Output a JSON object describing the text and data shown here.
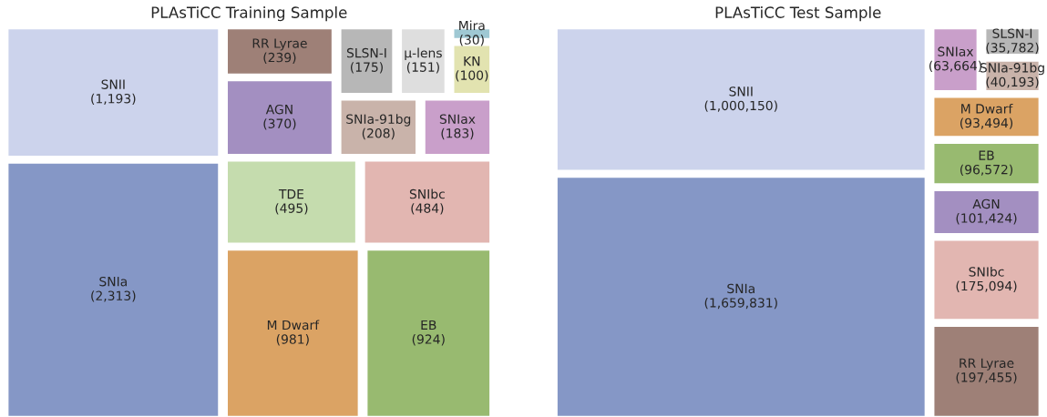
{
  "chart_data": [
    {
      "type": "other",
      "title": "PLAsTiCC Training Sample",
      "categories": [
        "SNIa",
        "SNII",
        "M Dwarf",
        "EB",
        "TDE",
        "SNIbc",
        "AGN",
        "RR Lyrae",
        "SNIa-91bg",
        "SNIax",
        "SLSN-I",
        "μ-lens",
        "KN",
        "Mira"
      ],
      "values": [
        2313,
        1193,
        981,
        924,
        495,
        484,
        370,
        239,
        208,
        183,
        175,
        151,
        100,
        30
      ],
      "value_labels": [
        "(2,313)",
        "(1,193)",
        "(981)",
        "(924)",
        "(495)",
        "(484)",
        "(370)",
        "(239)",
        "(208)",
        "(183)",
        "(175)",
        "(151)",
        "(100)",
        "(30)"
      ],
      "colors": [
        "#8597c6",
        "#ccd3ec",
        "#dba364",
        "#98ba70",
        "#c5dcae",
        "#e2b6b1",
        "#a38fc1",
        "#9e8077",
        "#c9b3aa",
        "#c99fca",
        "#b7b7b7",
        "#dedede",
        "#e2e3b0",
        "#9fc8d3"
      ]
    },
    {
      "type": "other",
      "title": "PLAsTiCC Test Sample",
      "categories": [
        "SNIa",
        "SNII",
        "RR Lyrae",
        "SNIbc",
        "AGN",
        "EB",
        "M Dwarf",
        "SNIax",
        "SNIa-91bg",
        "SLSN-I"
      ],
      "values": [
        1659831,
        1000150,
        197455,
        175094,
        101424,
        96572,
        93494,
        63664,
        40193,
        35782
      ],
      "value_labels": [
        "(1,659,831)",
        "(1,000,150)",
        "(197,455)",
        "(175,094)",
        "(101,424)",
        "(96,572)",
        "(93,494)",
        "(63,664)",
        "(40,193)",
        "(35,782)"
      ],
      "colors": [
        "#8597c6",
        "#ccd3ec",
        "#9e8077",
        "#e2b6b1",
        "#a38fc1",
        "#98ba70",
        "#dba364",
        "#c99fca",
        "#c9b3aa",
        "#b7b7b7"
      ]
    }
  ]
}
